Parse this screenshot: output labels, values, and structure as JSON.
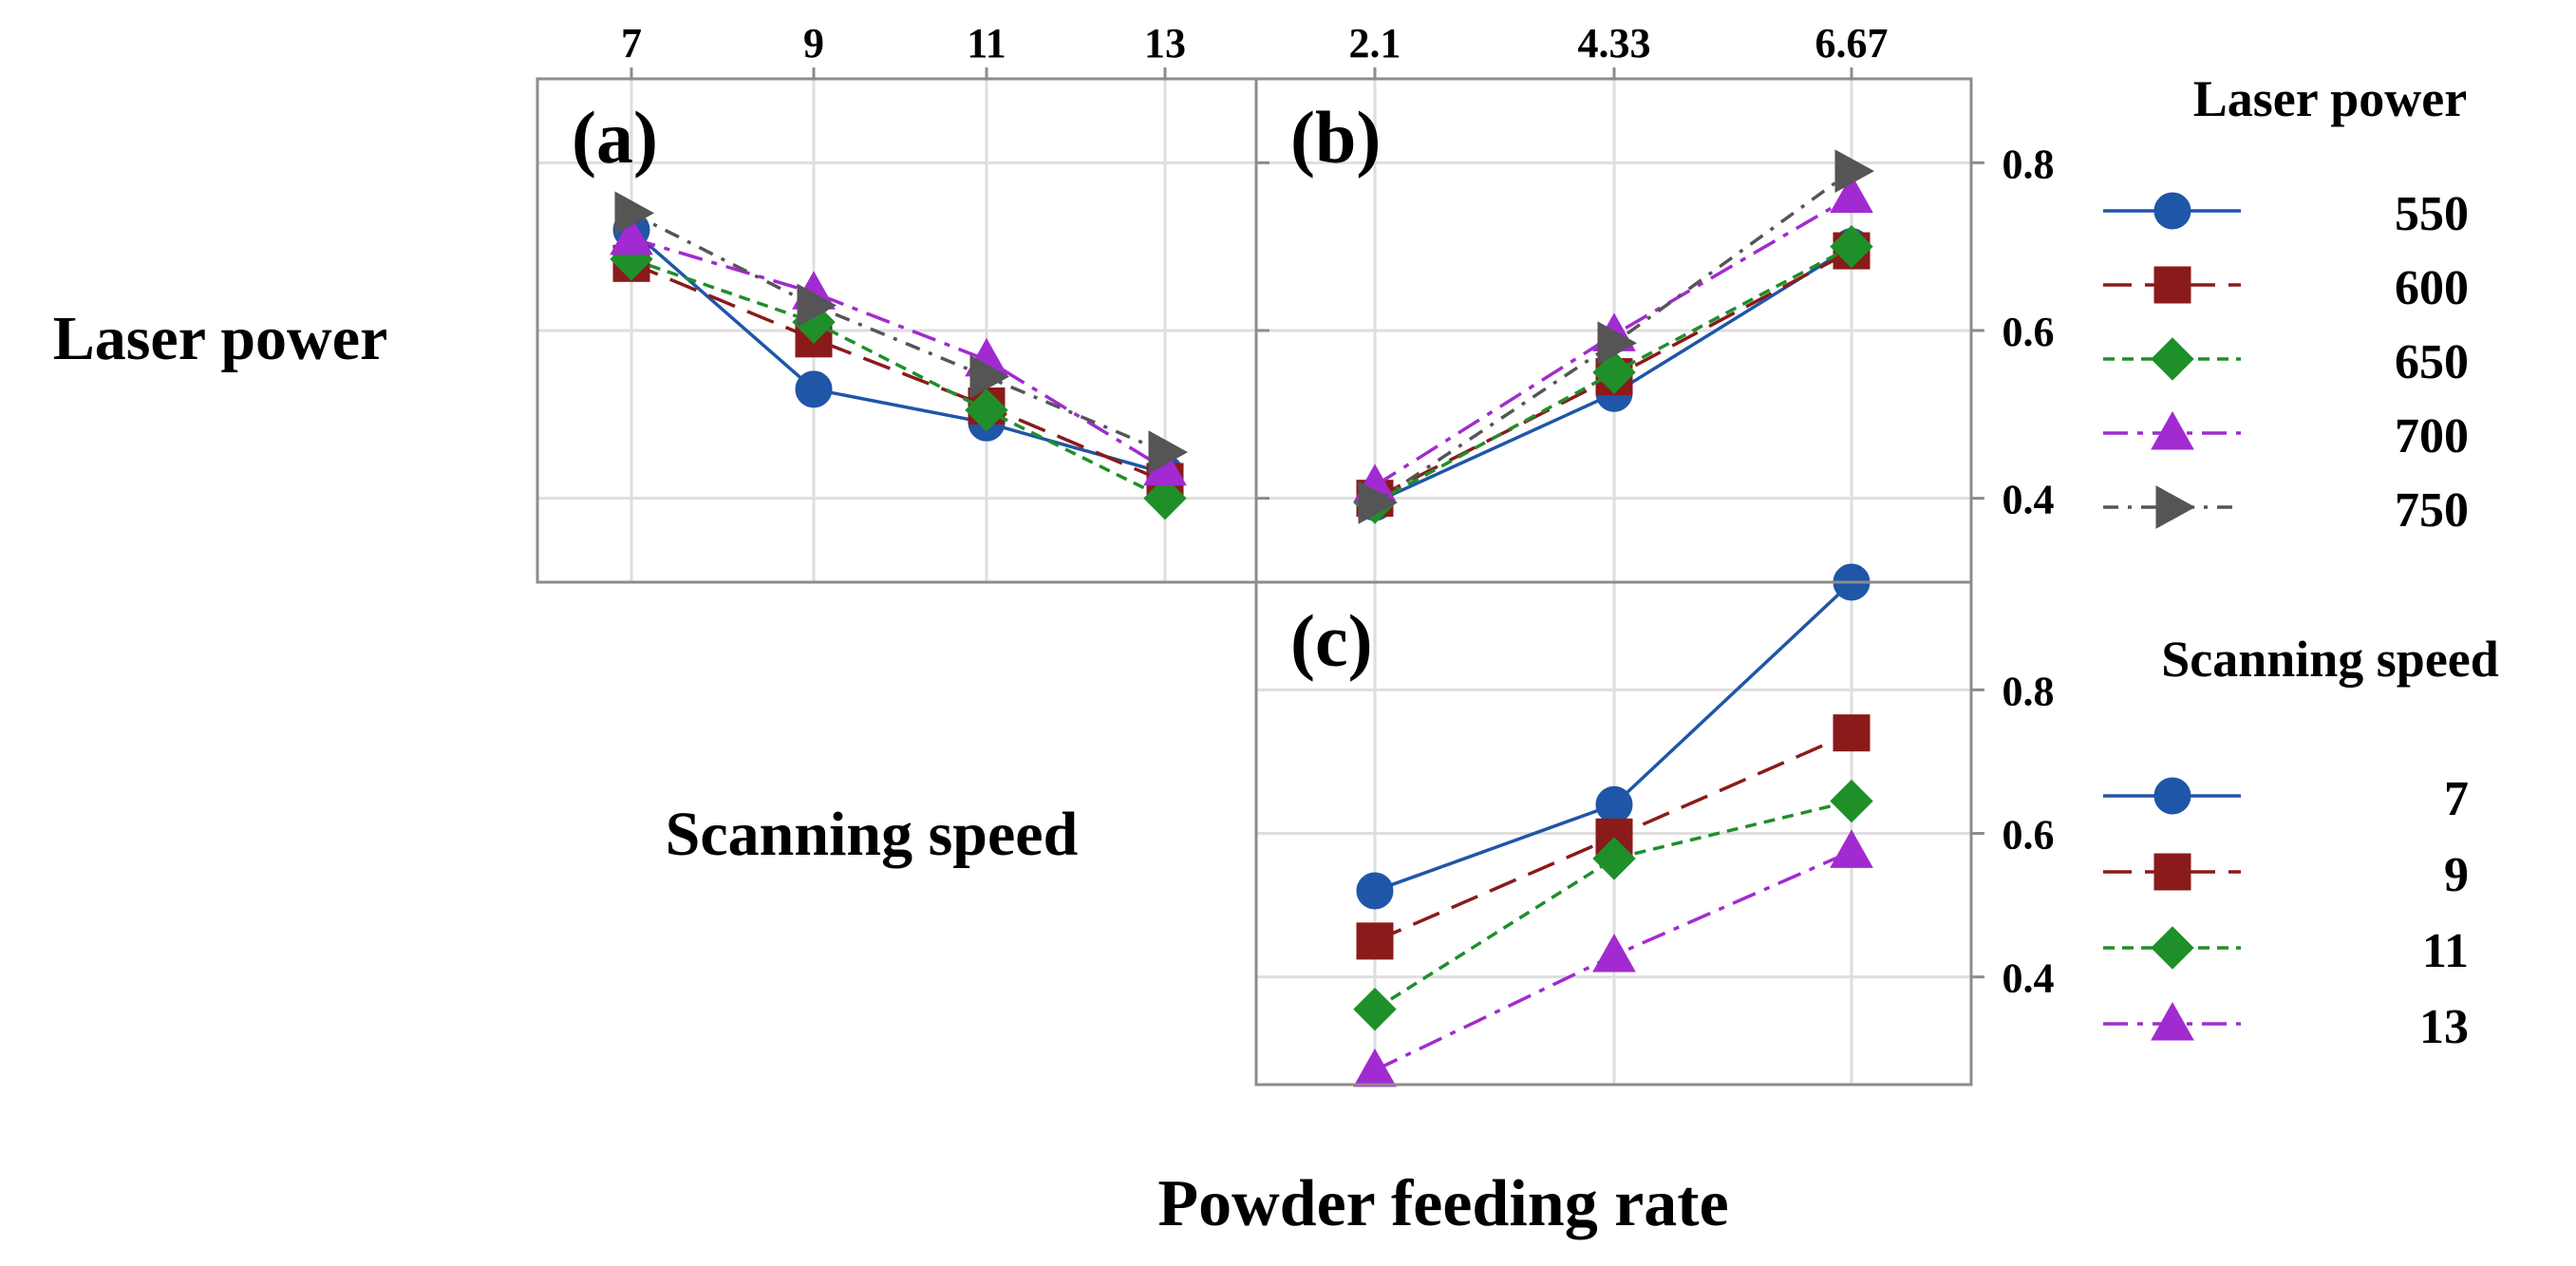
{
  "colors": {
    "s1": "#1f56a8",
    "s2": "#8b1a1a",
    "s3": "#1f8f2a",
    "s4": "#a12bd0",
    "s5": "#555555",
    "grid": "#dedede",
    "frame": "#8c8c8c"
  },
  "row_labels": [
    "Laser power",
    "Scanning speed"
  ],
  "x_title": "Powder feeding rate",
  "chart_data": [
    {
      "id": "a",
      "type": "line",
      "panel_label": "(a)",
      "x_factor": "Scanning speed",
      "trace_factor": "Laser power",
      "categories": [
        "7",
        "9",
        "11",
        "13"
      ],
      "ylim": [
        0.3,
        0.9
      ],
      "yticks": [
        0.4,
        0.6,
        0.8
      ],
      "grid": true,
      "series": [
        {
          "name": "550",
          "marker": "circle",
          "dash": "solid",
          "values": [
            0.72,
            0.53,
            0.49,
            0.43
          ]
        },
        {
          "name": "600",
          "marker": "square",
          "dash": "dashed",
          "values": [
            0.68,
            0.59,
            0.51,
            0.42
          ]
        },
        {
          "name": "650",
          "marker": "diamond",
          "dash": "dotted",
          "values": [
            0.685,
            0.61,
            0.505,
            0.4
          ]
        },
        {
          "name": "700",
          "marker": "triangle-up",
          "dash": "dashdot",
          "values": [
            0.71,
            0.645,
            0.565,
            0.435
          ]
        },
        {
          "name": "750",
          "marker": "triangle-right",
          "dash": "longdashdot",
          "values": [
            0.74,
            0.63,
            0.545,
            0.455
          ]
        }
      ]
    },
    {
      "id": "b",
      "type": "line",
      "panel_label": "(b)",
      "x_factor": "Powder feeding rate",
      "trace_factor": "Laser power",
      "categories": [
        "2.1",
        "4.33",
        "6.67"
      ],
      "ylim": [
        0.3,
        0.9
      ],
      "yticks": [
        0.4,
        0.6,
        0.8
      ],
      "ytick_labels": [
        "0.4",
        "0.6",
        "0.8"
      ],
      "grid": true,
      "series": [
        {
          "name": "550",
          "marker": "circle",
          "dash": "solid",
          "values": [
            0.395,
            0.525,
            0.7
          ]
        },
        {
          "name": "600",
          "marker": "square",
          "dash": "dashed",
          "values": [
            0.4,
            0.545,
            0.695
          ]
        },
        {
          "name": "650",
          "marker": "diamond",
          "dash": "dotted",
          "values": [
            0.395,
            0.55,
            0.7
          ]
        },
        {
          "name": "700",
          "marker": "triangle-up",
          "dash": "dashdot",
          "values": [
            0.415,
            0.595,
            0.76
          ]
        },
        {
          "name": "750",
          "marker": "triangle-right",
          "dash": "longdashdot",
          "values": [
            0.395,
            0.585,
            0.79
          ]
        }
      ]
    },
    {
      "id": "c",
      "type": "line",
      "panel_label": "(c)",
      "x_factor": "Powder feeding rate",
      "trace_factor": "Scanning speed",
      "categories": [
        "2.1",
        "4.33",
        "6.67"
      ],
      "ylim": [
        0.25,
        0.95
      ],
      "yticks": [
        0.4,
        0.6,
        0.8
      ],
      "ytick_labels": [
        "0.4",
        "0.6",
        "0.8"
      ],
      "grid": true,
      "series": [
        {
          "name": "7",
          "marker": "circle",
          "dash": "solid",
          "values": [
            0.52,
            0.64,
            0.95
          ]
        },
        {
          "name": "9",
          "marker": "square",
          "dash": "dashed",
          "values": [
            0.45,
            0.595,
            0.74
          ]
        },
        {
          "name": "11",
          "marker": "diamond",
          "dash": "dotted",
          "values": [
            0.355,
            0.565,
            0.645
          ]
        },
        {
          "name": "13",
          "marker": "triangle-up",
          "dash": "dashdot",
          "values": [
            0.27,
            0.43,
            0.575
          ]
        }
      ]
    }
  ],
  "legends": [
    {
      "title": "Laser power",
      "items": [
        "550",
        "600",
        "650",
        "700",
        "750"
      ]
    },
    {
      "title": "Scanning speed",
      "items": [
        "7",
        "9",
        "11",
        "13"
      ]
    }
  ]
}
